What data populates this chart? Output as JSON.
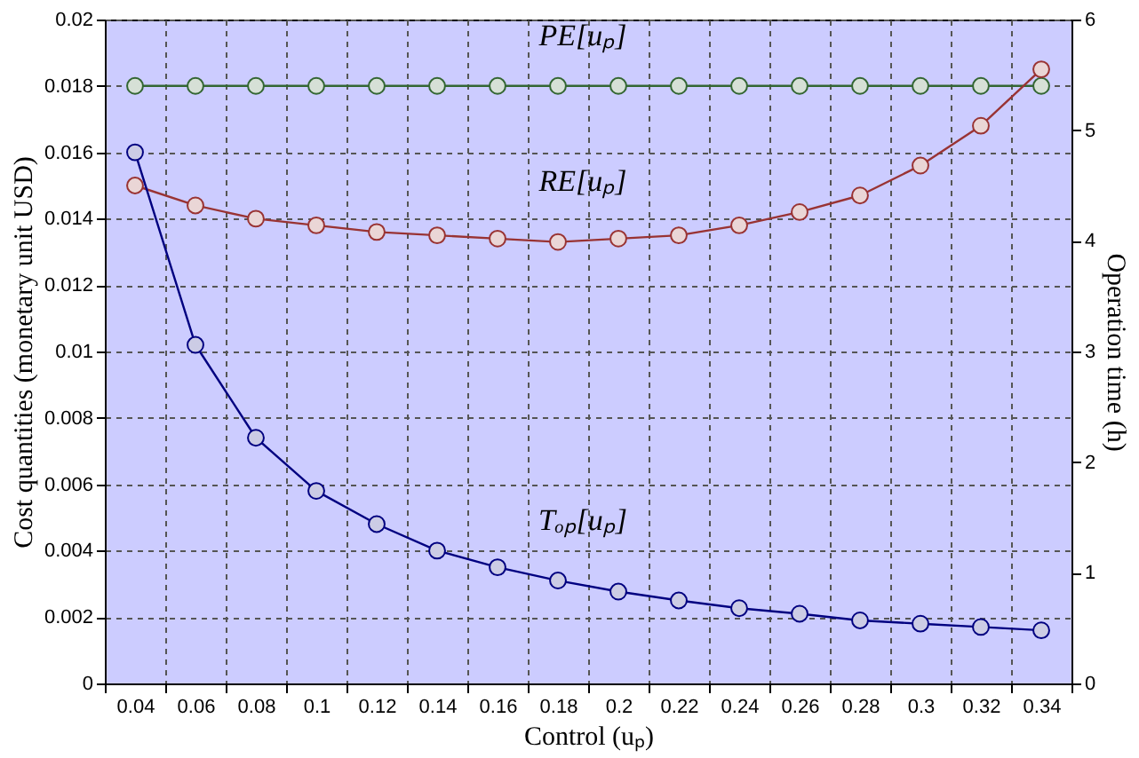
{
  "chart_data": {
    "type": "line",
    "xlabel": "Control (uₚ)",
    "ylabel": "Cost quantities (monetary unit USD)",
    "y2label": "Operation time (h)",
    "categories": [
      "0.04",
      "0.06",
      "0.08",
      "0.1",
      "0.12",
      "0.14",
      "0.16",
      "0.18",
      "0.2",
      "0.22",
      "0.24",
      "0.26",
      "0.28",
      "0.3",
      "0.32",
      "0.34"
    ],
    "series": [
      {
        "name": "PE[uₚ]",
        "color": "#336633",
        "values": [
          0.018,
          0.018,
          0.018,
          0.018,
          0.018,
          0.018,
          0.018,
          0.018,
          0.018,
          0.018,
          0.018,
          0.018,
          0.018,
          0.018,
          0.018,
          0.018
        ]
      },
      {
        "name": "RE[uₚ]",
        "color": "#993333",
        "values": [
          0.015,
          0.0144,
          0.014,
          0.0138,
          0.0136,
          0.0135,
          0.0134,
          0.0133,
          0.0134,
          0.0135,
          0.0138,
          0.0142,
          0.0147,
          0.0156,
          0.0168,
          0.0185
        ]
      },
      {
        "name": "Tₒₚ[uₚ]",
        "color": "#000080",
        "axis": "y2",
        "values": [
          4.8,
          3.06,
          2.22,
          1.74,
          1.44,
          1.2,
          1.05,
          0.93,
          0.83,
          0.75,
          0.68,
          0.63,
          0.57,
          0.54,
          0.51,
          0.48
        ]
      }
    ],
    "ylim": [
      0,
      0.02
    ],
    "yticks": [
      0,
      0.002,
      0.004,
      0.006,
      0.008,
      0.01,
      0.012,
      0.014,
      0.016,
      0.018,
      0.02
    ],
    "y2lim": [
      0,
      6
    ],
    "y2ticks": [
      0,
      1,
      2,
      3,
      4,
      5,
      6
    ],
    "grid": true,
    "marker": "circle",
    "line_style": "solid"
  }
}
